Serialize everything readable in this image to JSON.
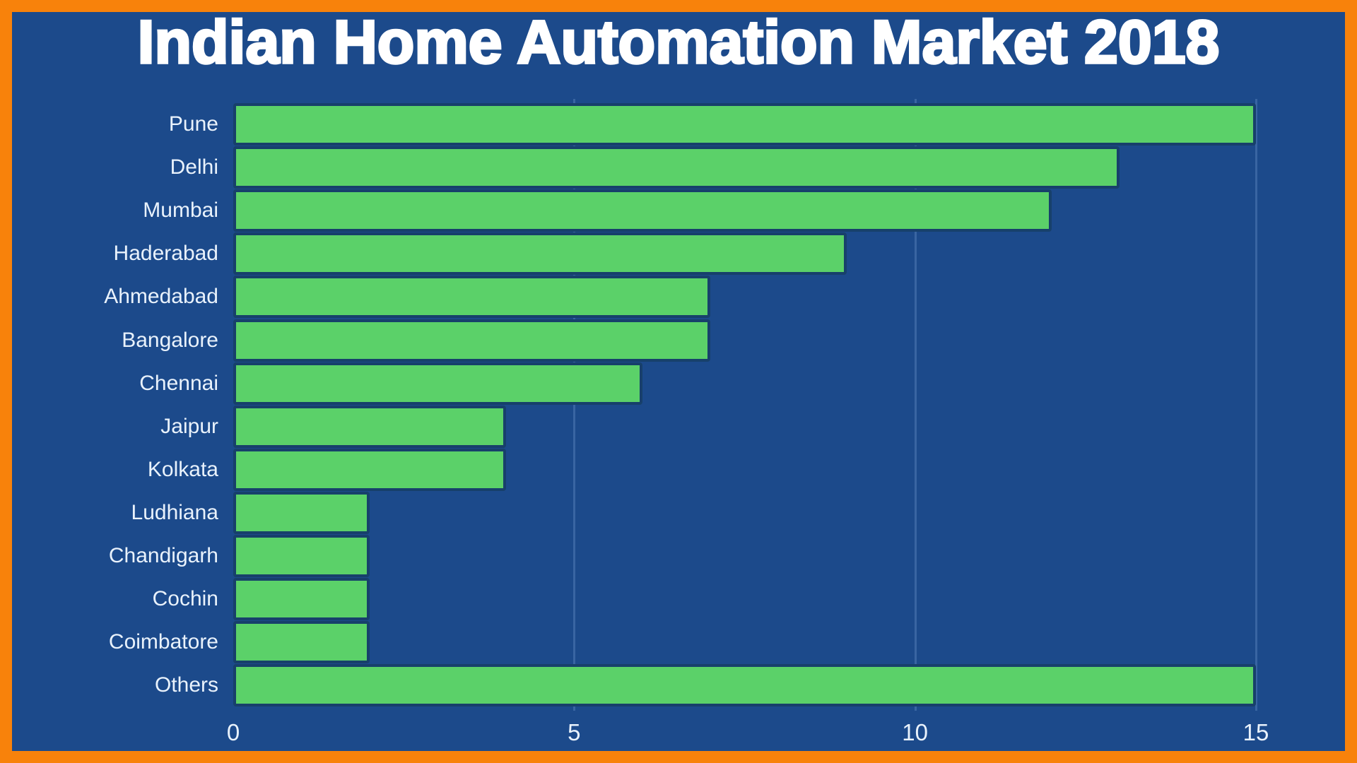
{
  "title": "Indian Home Automation Market 2018",
  "chart_data": {
    "type": "bar",
    "orientation": "horizontal",
    "title": "Indian Home Automation Market 2018",
    "categories": [
      "Pune",
      "Delhi",
      "Mumbai",
      "Haderabad",
      "Ahmedabad",
      "Bangalore",
      "Chennai",
      "Jaipur",
      "Kolkata",
      "Ludhiana",
      "Chandigarh",
      "Cochin",
      "Coimbatore",
      "Others"
    ],
    "values": [
      15,
      13,
      12,
      9,
      7,
      7,
      6,
      4,
      4,
      2,
      2,
      2,
      2,
      15
    ],
    "xlabel": "",
    "ylabel": "",
    "xlim": [
      0,
      15
    ],
    "xticks": [
      0,
      5,
      10,
      15
    ],
    "grid": "vertical lines at x ticks",
    "legend": "none"
  },
  "colors": {
    "frame_border": "#F8820B",
    "background": "#1C4A8B",
    "bar_fill": "#5BD169",
    "bar_stroke": "#17406B",
    "title_text": "#FFFFFF",
    "label_text": "#E9F2FC"
  }
}
